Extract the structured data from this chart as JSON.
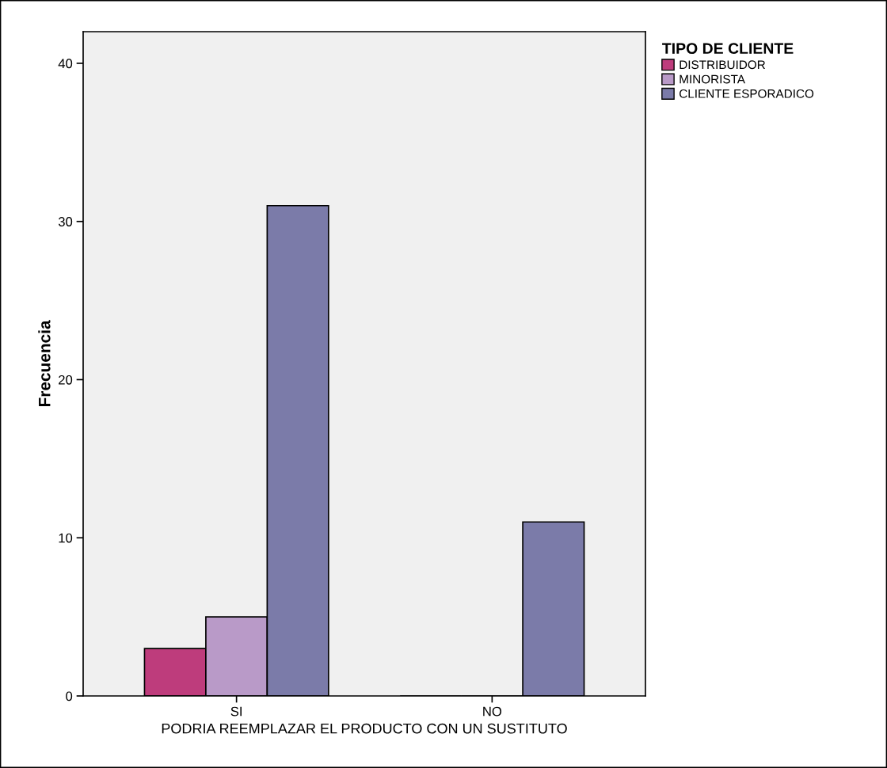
{
  "chart_data": {
    "type": "bar",
    "xlabel": "PODRIA REEMPLAZAR EL PRODUCTO CON UN SUSTITUTO",
    "ylabel": "Frecuencia",
    "legend_title": "TIPO DE CLIENTE",
    "categories": [
      "SI",
      "NO"
    ],
    "series": [
      {
        "name": "DISTRIBUIDOR",
        "color": "#be3c7c",
        "values": [
          3,
          0
        ]
      },
      {
        "name": "MINORISTA",
        "color": "#b99ac8",
        "values": [
          5,
          0
        ]
      },
      {
        "name": "CLIENTE ESPORADICO",
        "color": "#7b7ba9",
        "values": [
          31,
          11
        ]
      }
    ],
    "ylim": [
      0,
      42
    ],
    "yticks": [
      0,
      10,
      20,
      30,
      40
    ],
    "grid": false,
    "legend": "top right"
  }
}
